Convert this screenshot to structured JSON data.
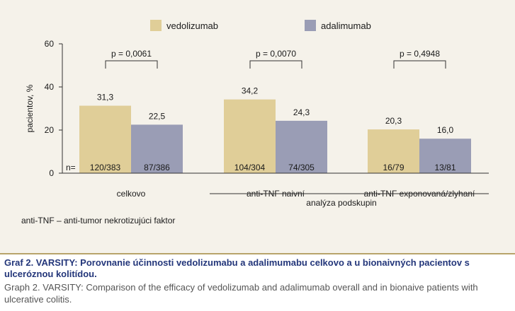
{
  "figure": {
    "footnote": "anti-TNF – anti-tumor nekrotizujúci faktor",
    "caption_sk": "Graf 2. VARSITY: Porovnanie účinnosti vedolizumabu a adalimumabu celkovo a u bionaivných pacientov s ulceróznou kolitídou.",
    "caption_en": "Graph 2. VARSITY: Comparison of the efficacy of vedolizumab and adalimumab overall and in bionaive patients with ulcerative colitis."
  },
  "chart_data": {
    "type": "bar",
    "ylabel": "pacientov, %",
    "ylim": [
      0,
      60
    ],
    "yticks": [
      "0",
      "20",
      "40",
      "60"
    ],
    "categories": [
      "celkovo",
      "anti-TNF  naivní",
      "anti-TNF  exponovaná/zlyhaní"
    ],
    "group_label": "analýza podskupin",
    "n_prefix": "n=",
    "series": [
      {
        "name": "vedolizumab",
        "color": "#e0ce98",
        "values": [
          31.3,
          34.2,
          20.3
        ],
        "value_labels": [
          "31,3",
          "34,2",
          "20,3"
        ],
        "n_labels": [
          "120/383",
          "104/304",
          "16/79"
        ]
      },
      {
        "name": "adalimumab",
        "color": "#9a9db5",
        "values": [
          22.5,
          24.3,
          16.0
        ],
        "value_labels": [
          "22,5",
          "24,3",
          "16,0"
        ],
        "n_labels": [
          "87/386",
          "74/305",
          "13/81"
        ]
      }
    ],
    "p_values": [
      "p = 0,0061",
      "p = 0,0070",
      "p = 0,4948"
    ],
    "legend_position": "top"
  }
}
